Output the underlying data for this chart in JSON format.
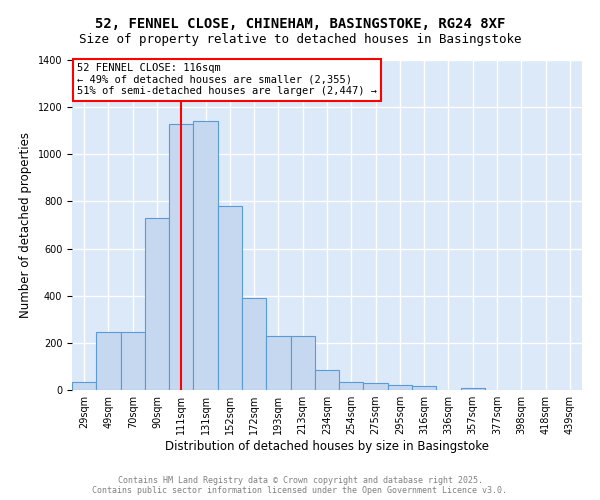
{
  "title_line1": "52, FENNEL CLOSE, CHINEHAM, BASINGSTOKE, RG24 8XF",
  "title_line2": "Size of property relative to detached houses in Basingstoke",
  "xlabel": "Distribution of detached houses by size in Basingstoke",
  "ylabel": "Number of detached properties",
  "categories": [
    "29sqm",
    "49sqm",
    "70sqm",
    "90sqm",
    "111sqm",
    "131sqm",
    "152sqm",
    "172sqm",
    "193sqm",
    "213sqm",
    "234sqm",
    "254sqm",
    "275sqm",
    "295sqm",
    "316sqm",
    "336sqm",
    "357sqm",
    "377sqm",
    "398sqm",
    "418sqm",
    "439sqm"
  ],
  "bar_heights": [
    35,
    245,
    245,
    730,
    1130,
    1140,
    780,
    390,
    230,
    230,
    85,
    35,
    30,
    20,
    15,
    0,
    10,
    0,
    0,
    0,
    0
  ],
  "bar_color": "#c5d8f0",
  "bar_edge_color": "#5b9bd5",
  "vline_x_index": 4.5,
  "vline_color": "red",
  "annotation_title": "52 FENNEL CLOSE: 116sqm",
  "annotation_line2": "← 49% of detached houses are smaller (2,355)",
  "annotation_line3": "51% of semi-detached houses are larger (2,447) →",
  "ylim": [
    0,
    1400
  ],
  "yticks": [
    0,
    200,
    400,
    600,
    800,
    1000,
    1200,
    1400
  ],
  "background_color": "#dce9f8",
  "footer_line1": "Contains HM Land Registry data © Crown copyright and database right 2025.",
  "footer_line2": "Contains public sector information licensed under the Open Government Licence v3.0.",
  "title_fontsize": 10,
  "subtitle_fontsize": 9,
  "axis_label_fontsize": 8.5,
  "tick_fontsize": 7,
  "annotation_fontsize": 7.5,
  "footer_fontsize": 6
}
